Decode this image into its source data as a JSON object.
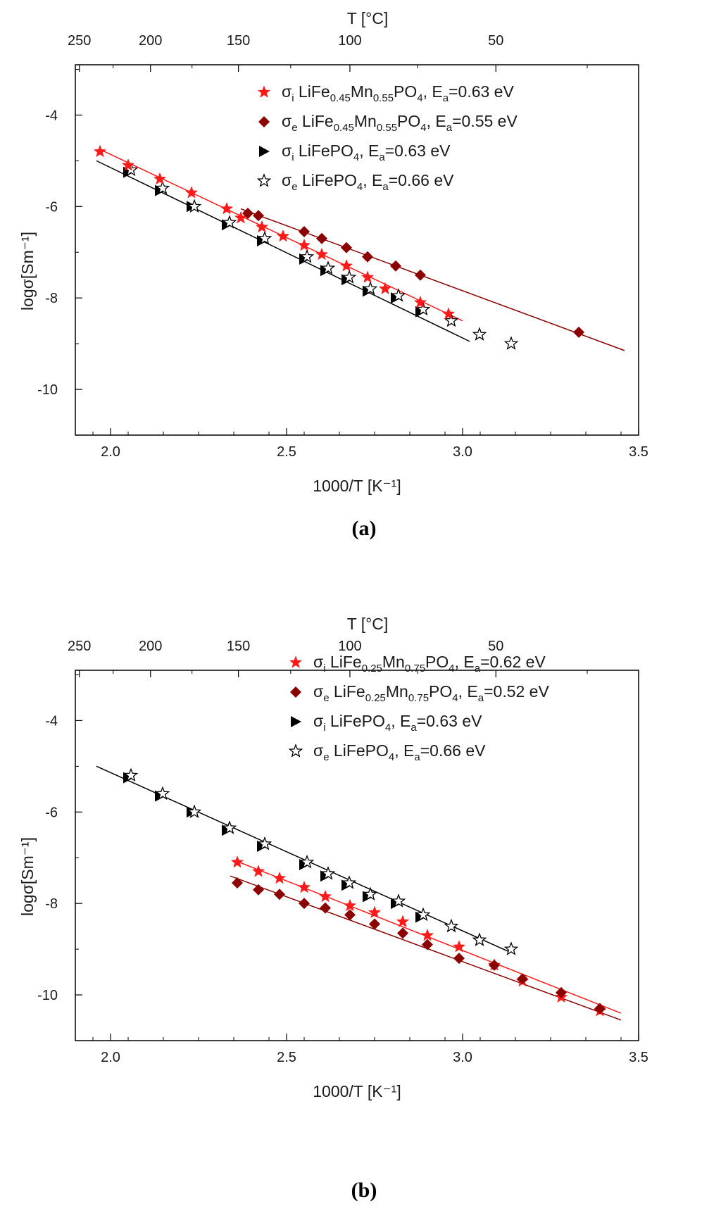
{
  "colors": {
    "red": "#ff1a1a",
    "darkred": "#8b0000",
    "black": "#000000",
    "frame": "#000000"
  },
  "chart_data": [
    {
      "caption": "(a)",
      "type": "scatter",
      "xlabel": "1000/T [K⁻¹]",
      "ylabel": "logσ[Sm⁻¹]",
      "top_xlabel": "T [°C]",
      "xlim": [
        1.9,
        3.5
      ],
      "ylim": [
        -11,
        -2.9
      ],
      "x_ticks": [
        2.0,
        2.5,
        3.0,
        3.5
      ],
      "x_tick_labels": [
        "2.0",
        "2.5",
        "3.0",
        "3.5"
      ],
      "y_ticks": [
        -4,
        -6,
        -8,
        -10
      ],
      "y_tick_labels": [
        "-4",
        "-6",
        "-8",
        "-10"
      ],
      "top_ticks": [
        250,
        200,
        150,
        100,
        50
      ],
      "top_tick_labels": [
        "250",
        "200",
        "150",
        "100",
        "50"
      ],
      "legend_position": "top-right",
      "series": [
        {
          "name": "σi LiFe0.45Mn0.55PO4, Ea=0.63 eV",
          "sigma_sub": "i",
          "compound": "LiFe",
          "sub1": "0.45",
          "mn": "Mn",
          "sub2": "0.55",
          "po": "PO",
          "sub3": "4",
          "ea": "=0.63 eV",
          "marker": "star-filled",
          "color": "#ff1a1a",
          "x": [
            1.97,
            2.05,
            2.14,
            2.23,
            2.33,
            2.37,
            2.43,
            2.49,
            2.55,
            2.6,
            2.67,
            2.73,
            2.78,
            2.88,
            2.96
          ],
          "y": [
            -4.8,
            -5.1,
            -5.4,
            -5.7,
            -6.05,
            -6.25,
            -6.45,
            -6.65,
            -6.85,
            -7.05,
            -7.3,
            -7.55,
            -7.8,
            -8.1,
            -8.35
          ],
          "fit": {
            "x": [
              1.97,
              3.0
            ],
            "y": [
              -4.75,
              -8.5
            ]
          }
        },
        {
          "name": "σe LiFe0.45Mn0.55PO4, Ea=0.55 eV",
          "sigma_sub": "e",
          "compound": "LiFe",
          "sub1": "0.45",
          "mn": "Mn",
          "sub2": "0.55",
          "po": "PO",
          "sub3": "4",
          "ea": "=0.55 eV",
          "marker": "diamond",
          "color": "#8b0000",
          "x": [
            2.39,
            2.42,
            2.55,
            2.6,
            2.67,
            2.73,
            2.81,
            2.88,
            3.33
          ],
          "y": [
            -6.15,
            -6.2,
            -6.55,
            -6.7,
            -6.9,
            -7.1,
            -7.3,
            -7.5,
            -8.75
          ],
          "fit": {
            "x": [
              2.37,
              3.46
            ],
            "y": [
              -6.05,
              -9.15
            ]
          }
        },
        {
          "name": "σi LiFePO4, Ea=0.63 eV",
          "sigma_sub": "i",
          "compound": "LiFePO",
          "sub3": "4",
          "ea": "=0.63 eV",
          "marker": "triangle-right",
          "color": "#000000",
          "x": [
            2.05,
            2.14,
            2.23,
            2.33,
            2.43,
            2.55,
            2.61,
            2.67,
            2.73,
            2.81,
            2.88
          ],
          "y": [
            -5.25,
            -5.65,
            -6.0,
            -6.4,
            -6.75,
            -7.15,
            -7.4,
            -7.6,
            -7.85,
            -8.0,
            -8.3
          ],
          "fit": {
            "x": [
              1.96,
              3.02
            ],
            "y": [
              -5.0,
              -8.95
            ]
          }
        },
        {
          "name": "σe LiFePO4, Ea=0.66 eV",
          "sigma_sub": "e",
          "compound": "LiFePO",
          "sub3": "4",
          "ea": "=0.66 eV",
          "marker": "star-open",
          "color": "#000000",
          "x": [
            2.05,
            2.14,
            2.23,
            2.33,
            2.43,
            2.55,
            2.61,
            2.67,
            2.73,
            2.81,
            2.88,
            2.96,
            3.04,
            3.13
          ],
          "y": [
            -5.2,
            -5.6,
            -6.0,
            -6.35,
            -6.7,
            -7.1,
            -7.35,
            -7.55,
            -7.8,
            -7.95,
            -8.25,
            -8.5,
            -8.8,
            -9.0
          ]
        }
      ]
    },
    {
      "caption": "(b)",
      "type": "scatter",
      "xlabel": "1000/T [K⁻¹]",
      "ylabel": "logσ[Sm⁻¹]",
      "top_xlabel": "T [°C]",
      "xlim": [
        1.9,
        3.5
      ],
      "ylim": [
        -11,
        -2.9
      ],
      "x_ticks": [
        2.0,
        2.5,
        3.0,
        3.5
      ],
      "x_tick_labels": [
        "2.0",
        "2.5",
        "3.0",
        "3.5"
      ],
      "y_ticks": [
        -4,
        -6,
        -8,
        -10
      ],
      "y_tick_labels": [
        "-4",
        "-6",
        "-8",
        "-10"
      ],
      "top_ticks": [
        250,
        200,
        150,
        100,
        50
      ],
      "top_tick_labels": [
        "250",
        "200",
        "150",
        "100",
        "50"
      ],
      "legend_position": "top-right",
      "series": [
        {
          "name": "σi LiFe0.25Mn0.75PO4, Ea=0.62 eV",
          "sigma_sub": "i",
          "compound": "LiFe",
          "sub1": "0.25",
          "mn": "Mn",
          "sub2": "0.75",
          "po": "PO",
          "sub3": "4",
          "ea": "=0.62 eV",
          "marker": "star-filled",
          "color": "#ff1a1a",
          "x": [
            2.36,
            2.42,
            2.48,
            2.55,
            2.61,
            2.68,
            2.75,
            2.83,
            2.9,
            2.99,
            3.09,
            3.17,
            3.28,
            3.39
          ],
          "y": [
            -7.1,
            -7.3,
            -7.45,
            -7.65,
            -7.85,
            -8.05,
            -8.2,
            -8.4,
            -8.7,
            -8.95,
            -9.35,
            -9.7,
            -10.05,
            -10.35
          ],
          "fit": {
            "x": [
              2.35,
              3.45
            ],
            "y": [
              -7.05,
              -10.4
            ]
          }
        },
        {
          "name": "σe LiFe0.25Mn0.75PO4, Ea=0.52 eV",
          "sigma_sub": "e",
          "compound": "LiFe",
          "sub1": "0.25",
          "mn": "Mn",
          "sub2": "0.75",
          "po": "PO",
          "sub3": "4",
          "ea": "=0.52 eV",
          "marker": "diamond",
          "color": "#8b0000",
          "x": [
            2.36,
            2.42,
            2.48,
            2.55,
            2.61,
            2.68,
            2.75,
            2.83,
            2.9,
            2.99,
            3.09,
            3.17,
            3.28,
            3.39
          ],
          "y": [
            -7.55,
            -7.7,
            -7.8,
            -8.0,
            -8.1,
            -8.25,
            -8.45,
            -8.65,
            -8.9,
            -9.2,
            -9.35,
            -9.65,
            -9.95,
            -10.3
          ],
          "fit": {
            "x": [
              2.34,
              3.45
            ],
            "y": [
              -7.4,
              -10.55
            ]
          }
        },
        {
          "name": "σi LiFePO4, Ea=0.63 eV",
          "sigma_sub": "i",
          "compound": "LiFePO",
          "sub3": "4",
          "ea": "=0.63 eV",
          "marker": "triangle-right",
          "color": "#000000",
          "x": [
            2.05,
            2.14,
            2.23,
            2.33,
            2.43,
            2.55,
            2.61,
            2.67,
            2.73,
            2.81,
            2.88
          ],
          "y": [
            -5.25,
            -5.65,
            -6.0,
            -6.4,
            -6.75,
            -7.15,
            -7.4,
            -7.6,
            -7.85,
            -8.0,
            -8.3
          ],
          "fit": {
            "x": [
              1.96,
              3.13
            ],
            "y": [
              -5.0,
              -9.05
            ]
          }
        },
        {
          "name": "σe LiFePO4, Ea=0.66 eV",
          "sigma_sub": "e",
          "compound": "LiFePO",
          "sub3": "4",
          "ea": "=0.66 eV",
          "marker": "star-open",
          "color": "#000000",
          "x": [
            2.05,
            2.14,
            2.23,
            2.33,
            2.43,
            2.55,
            2.61,
            2.67,
            2.73,
            2.81,
            2.88,
            2.96,
            3.04,
            3.13
          ],
          "y": [
            -5.2,
            -5.6,
            -6.0,
            -6.35,
            -6.7,
            -7.1,
            -7.35,
            -7.55,
            -7.8,
            -7.95,
            -8.25,
            -8.5,
            -8.8,
            -9.0
          ]
        }
      ]
    }
  ]
}
